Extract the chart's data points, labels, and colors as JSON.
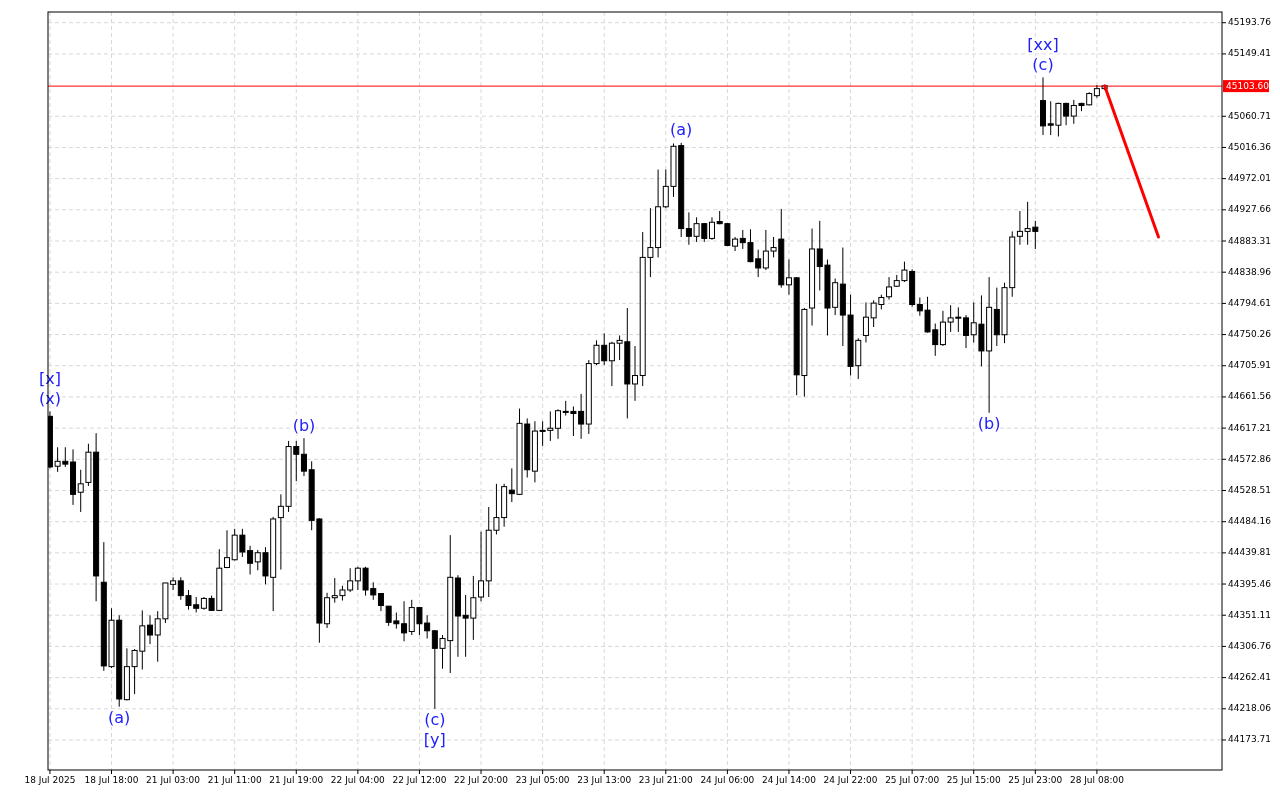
{
  "chart_data": {
    "type": "candlestick",
    "categories": [
      "18 Jul 2025",
      null,
      null,
      null,
      null,
      null,
      null,
      null,
      "18 Jul 18:00",
      null,
      null,
      null,
      null,
      null,
      null,
      null,
      "21 Jul 03:00",
      null,
      null,
      null,
      null,
      null,
      null,
      null,
      "21 Jul 11:00",
      null,
      null,
      null,
      null,
      null,
      null,
      null,
      "21 Jul 19:00",
      null,
      null,
      null,
      null,
      null,
      null,
      null,
      "22 Jul 04:00",
      null,
      null,
      null,
      null,
      null,
      null,
      null,
      "22 Jul 12:00",
      null,
      null,
      null,
      null,
      null,
      null,
      null,
      "22 Jul 20:00",
      null,
      null,
      null,
      null,
      null,
      null,
      null,
      "23 Jul 05:00",
      null,
      null,
      null,
      null,
      null,
      null,
      null,
      "23 Jul 13:00",
      null,
      null,
      null,
      null,
      null,
      null,
      null,
      "23 Jul 21:00",
      null,
      null,
      null,
      null,
      null,
      null,
      null,
      "24 Jul 06:00",
      null,
      null,
      null,
      null,
      null,
      null,
      null,
      "24 Jul 14:00",
      null,
      null,
      null,
      null,
      null,
      null,
      null,
      "24 Jul 22:00",
      null,
      null,
      null,
      null,
      null,
      null,
      null,
      "25 Jul 07:00",
      null,
      null,
      null,
      null,
      null,
      null,
      null,
      "25 Jul 15:00",
      null,
      null,
      null,
      null,
      null,
      null,
      null,
      "25 Jul 23:00",
      null,
      null,
      null,
      null,
      null,
      null,
      null,
      "28 Jul 08:00",
      null,
      null,
      null,
      null,
      null,
      null,
      null,
      null,
      null,
      null,
      null,
      null,
      null,
      null,
      null,
      null
    ],
    "ohlc": [
      [
        44634,
        44641,
        44560,
        44562
      ],
      [
        44563,
        44590,
        44555,
        44570
      ],
      [
        44570,
        44590,
        44562,
        44566
      ],
      [
        44569,
        44587,
        44508,
        44523
      ],
      [
        44526,
        44558,
        44498,
        44538
      ],
      [
        44540,
        44595,
        44535,
        44583
      ],
      [
        44583,
        44610,
        44371,
        44407
      ],
      [
        44398,
        44455,
        44272,
        44279
      ],
      [
        44278,
        44361,
        44276,
        44344
      ],
      [
        44344,
        44351,
        44221,
        44232
      ],
      [
        44231,
        44304,
        44230,
        44278
      ],
      [
        44278,
        44303,
        44239,
        44301
      ],
      [
        44300,
        44358,
        44274,
        44336
      ],
      [
        44337,
        44351,
        44310,
        44323
      ],
      [
        44323,
        44357,
        44285,
        44346
      ],
      [
        44346,
        44397,
        44340,
        44397
      ],
      [
        44395,
        44405,
        44387,
        44400
      ],
      [
        44400,
        44405,
        44373,
        44379
      ],
      [
        44379,
        44387,
        44359,
        44365
      ],
      [
        44366,
        44377,
        44355,
        44361
      ],
      [
        44361,
        44377,
        44359,
        44375
      ],
      [
        44375,
        44379,
        44358,
        44358
      ],
      [
        44358,
        44445,
        44357,
        44418
      ],
      [
        44419,
        44472,
        44418,
        44433
      ],
      [
        44430,
        44474,
        44429,
        44465
      ],
      [
        44465,
        44474,
        44434,
        44441
      ],
      [
        44443,
        44450,
        44409,
        44425
      ],
      [
        44427,
        44444,
        44415,
        44440
      ],
      [
        44440,
        44448,
        44395,
        44407
      ],
      [
        44405,
        44491,
        44357,
        44488
      ],
      [
        44490,
        44523,
        44416,
        44506
      ],
      [
        44506,
        44599,
        44498,
        44591
      ],
      [
        44591,
        44599,
        44542,
        44580
      ],
      [
        44580,
        44603,
        44549,
        44556
      ],
      [
        44558,
        44570,
        44472,
        44486
      ],
      [
        44488,
        44489,
        44312,
        44340
      ],
      [
        44339,
        44383,
        44333,
        44376
      ],
      [
        44376,
        44404,
        44369,
        44379
      ],
      [
        44379,
        44393,
        44372,
        44387
      ],
      [
        44387,
        44418,
        44384,
        44400
      ],
      [
        44400,
        44420,
        44387,
        44418
      ],
      [
        44418,
        44420,
        44379,
        44387
      ],
      [
        44389,
        44398,
        44373,
        44380
      ],
      [
        44382,
        44382,
        44357,
        44365
      ],
      [
        44364,
        44364,
        44336,
        44341
      ],
      [
        44343,
        44355,
        44332,
        44339
      ],
      [
        44339,
        44371,
        44314,
        44326
      ],
      [
        44328,
        44373,
        44323,
        44362
      ],
      [
        44362,
        44363,
        44323,
        44339
      ],
      [
        44340,
        44351,
        44318,
        44329
      ],
      [
        44329,
        44330,
        44218,
        44304
      ],
      [
        44304,
        44323,
        44275,
        44318
      ],
      [
        44315,
        44465,
        44269,
        44405
      ],
      [
        44404,
        44408,
        44292,
        44350
      ],
      [
        44351,
        44380,
        44292,
        44347
      ],
      [
        44347,
        44407,
        44316,
        44376
      ],
      [
        44377,
        44470,
        44371,
        44400
      ],
      [
        44400,
        44505,
        44377,
        44472
      ],
      [
        44472,
        44538,
        44466,
        44490
      ],
      [
        44490,
        44538,
        44477,
        44534
      ],
      [
        44529,
        44560,
        44512,
        44524
      ],
      [
        44523,
        44645,
        44522,
        44624
      ],
      [
        44623,
        44631,
        44547,
        44558
      ],
      [
        44556,
        44627,
        44540,
        44613
      ],
      [
        44614,
        44627,
        44592,
        44613
      ],
      [
        44614,
        44641,
        44599,
        44617
      ],
      [
        44617,
        44644,
        44602,
        44642
      ],
      [
        44641,
        44656,
        44635,
        44640
      ],
      [
        44641,
        44648,
        44606,
        44638
      ],
      [
        44641,
        44666,
        44602,
        44623
      ],
      [
        44623,
        44714,
        44609,
        44709
      ],
      [
        44709,
        44742,
        44707,
        44735
      ],
      [
        44735,
        44752,
        44707,
        44713
      ],
      [
        44713,
        44740,
        44677,
        44738
      ],
      [
        44738,
        44749,
        44714,
        44742
      ],
      [
        44740,
        44788,
        44631,
        44680
      ],
      [
        44680,
        44734,
        44656,
        44692
      ],
      [
        44692,
        44896,
        44677,
        44860
      ],
      [
        44860,
        44930,
        44832,
        44874
      ],
      [
        44874,
        44985,
        44860,
        44932
      ],
      [
        44932,
        44985,
        44930,
        44961
      ],
      [
        44961,
        45022,
        44946,
        45018
      ],
      [
        45019,
        45023,
        44889,
        44901
      ],
      [
        44901,
        44924,
        44878,
        44890
      ],
      [
        44890,
        44917,
        44882,
        44908
      ],
      [
        44908,
        44909,
        44882,
        44887
      ],
      [
        44887,
        44917,
        44885,
        44910
      ],
      [
        44911,
        44926,
        44907,
        44908
      ],
      [
        44908,
        44909,
        44876,
        44877
      ],
      [
        44876,
        44889,
        44869,
        44886
      ],
      [
        44887,
        44899,
        44872,
        44881
      ],
      [
        44881,
        44900,
        44853,
        44854
      ],
      [
        44858,
        44871,
        44832,
        44845
      ],
      [
        44845,
        44899,
        44842,
        44869
      ],
      [
        44869,
        44889,
        44860,
        44874
      ],
      [
        44886,
        44929,
        44817,
        44821
      ],
      [
        44821,
        44857,
        44807,
        44831
      ],
      [
        44831,
        44832,
        44664,
        44693
      ],
      [
        44692,
        44788,
        44662,
        44786
      ],
      [
        44788,
        44901,
        44763,
        44872
      ],
      [
        44872,
        44912,
        44813,
        44847
      ],
      [
        44849,
        44857,
        44749,
        44788
      ],
      [
        44789,
        44830,
        44778,
        44824
      ],
      [
        44822,
        44874,
        44734,
        44778
      ],
      [
        44778,
        44807,
        44692,
        44705
      ],
      [
        44706,
        44745,
        44687,
        44742
      ],
      [
        44749,
        44796,
        44739,
        44775
      ],
      [
        44774,
        44799,
        44761,
        44795
      ],
      [
        44793,
        44807,
        44786,
        44803
      ],
      [
        44804,
        44832,
        44800,
        44818
      ],
      [
        44819,
        44835,
        44818,
        44827
      ],
      [
        44827,
        44854,
        44825,
        44842
      ],
      [
        44840,
        44843,
        44790,
        44793
      ],
      [
        44793,
        44803,
        44777,
        44784
      ],
      [
        44785,
        44804,
        44753,
        44754
      ],
      [
        44757,
        44766,
        44720,
        44736
      ],
      [
        44736,
        44784,
        44734,
        44768
      ],
      [
        44768,
        44792,
        44754,
        44774
      ],
      [
        44775,
        44789,
        44754,
        44774
      ],
      [
        44774,
        44778,
        44731,
        44749
      ],
      [
        44750,
        44796,
        44739,
        44767
      ],
      [
        44765,
        44806,
        44705,
        44727
      ],
      [
        44727,
        44832,
        44639,
        44789
      ],
      [
        44786,
        44817,
        44734,
        44750
      ],
      [
        44750,
        44824,
        44738,
        44817
      ],
      [
        44817,
        44897,
        44804,
        44889
      ],
      [
        44890,
        44926,
        44878,
        44897
      ],
      [
        44897,
        44939,
        44878,
        44901
      ],
      [
        44903,
        44912,
        44872,
        44897
      ],
      [
        45083,
        45116,
        45034,
        45047
      ],
      [
        45050,
        45082,
        45034,
        45048
      ],
      [
        45048,
        45080,
        45032,
        45079
      ],
      [
        45079,
        45080,
        45048,
        45061
      ],
      [
        45061,
        45084,
        45050,
        45076
      ],
      [
        45079,
        45080,
        45068,
        45076
      ],
      [
        45077,
        45095,
        45076,
        45093
      ],
      [
        45090,
        45105,
        45087,
        45100
      ],
      [
        45100,
        45105,
        45098,
        45104
      ],
      null,
      null,
      null,
      null,
      null,
      null,
      null,
      null,
      null,
      null,
      null,
      null,
      null,
      null,
      null
    ],
    "series": [
      {
        "type": "line",
        "color": "#ff0000",
        "values": [
          null,
          null,
          null,
          null,
          null,
          null,
          null,
          null,
          null,
          null,
          null,
          null,
          null,
          null,
          null,
          null,
          null,
          null,
          null,
          null,
          null,
          null,
          null,
          null,
          null,
          null,
          null,
          null,
          null,
          null,
          null,
          null,
          null,
          null,
          null,
          null,
          null,
          null,
          null,
          null,
          null,
          null,
          null,
          null,
          null,
          null,
          null,
          null,
          null,
          null,
          null,
          null,
          null,
          null,
          null,
          null,
          null,
          null,
          null,
          null,
          null,
          null,
          null,
          null,
          null,
          null,
          null,
          null,
          null,
          null,
          null,
          null,
          null,
          null,
          null,
          null,
          null,
          null,
          null,
          null,
          null,
          null,
          null,
          null,
          null,
          null,
          null,
          null,
          null,
          null,
          null,
          null,
          null,
          null,
          null,
          null,
          null,
          null,
          null,
          null,
          null,
          null,
          null,
          null,
          null,
          null,
          null,
          null,
          null,
          null,
          null,
          null,
          null,
          null,
          null,
          null,
          null,
          null,
          null,
          null,
          null,
          null,
          null,
          null,
          null,
          null,
          null,
          null,
          null,
          null,
          null,
          null,
          null,
          null,
          null,
          null,
          null,
          45104,
          null,
          null,
          null,
          null,
          null,
          null,
          44889,
          null,
          null,
          null,
          null,
          null,
          null,
          null,
          null
        ]
      }
    ],
    "ylim": [
      44131,
      45209
    ],
    "yticks": [
      44173.71,
      44218.06,
      44262.41,
      44306.76,
      44351.11,
      44395.46,
      44439.81,
      44484.16,
      44528.51,
      44572.86,
      44617.21,
      44661.56,
      44705.91,
      44750.26,
      44794.61,
      44838.96,
      44883.31,
      44927.66,
      44972.01,
      45016.36,
      45060.71,
      45149.41,
      45193.76
    ],
    "grid": true,
    "ref_lines": [
      {
        "axis": "y",
        "value": 45103.6,
        "label": "45103.60",
        "color": "#ff0000"
      }
    ],
    "annotations": [
      {
        "text": "(x)",
        "y": 44641
      },
      {
        "text": "[x]",
        "y": 44641
      },
      {
        "text": "(a)",
        "y": 44221
      },
      {
        "text": "(b)",
        "y": 44603
      },
      {
        "text": "(c)",
        "y": 44218
      },
      {
        "text": "[y]",
        "y": 44218
      },
      {
        "text": "(a)",
        "y": 45023
      },
      {
        "text": "(b)",
        "y": 44639
      },
      {
        "text": "(c)",
        "y": 45116
      },
      {
        "text": "[xx]",
        "y": 45116
      }
    ]
  }
}
